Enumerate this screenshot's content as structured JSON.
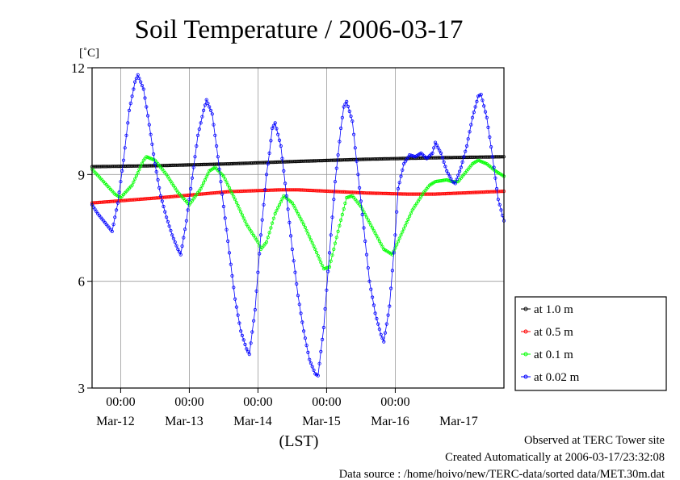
{
  "chart_data": {
    "type": "line",
    "title": "Soil Temperature / 2006-03-17",
    "ylabel": "[˚C]",
    "xlabel": "(LST)",
    "ylim": [
      3,
      12
    ],
    "yticks": [
      "3",
      "6",
      "9",
      "12"
    ],
    "time_labels": [
      "00:00",
      "00:00",
      "00:00",
      "00:00",
      "00:00"
    ],
    "day_labels": [
      "Mar-12",
      "Mar-13",
      "Mar-14",
      "Mar-15",
      "Mar-16",
      "Mar-17"
    ],
    "grid": true,
    "legend_position": "right",
    "x_unit": "hours from 2006-03-11 14:00 LST",
    "x_range": [
      0,
      144
    ],
    "series": [
      {
        "name": "at 1.0 m",
        "color": "#000000",
        "points": [
          [
            0,
            9.22
          ],
          [
            24,
            9.25
          ],
          [
            48,
            9.3
          ],
          [
            72,
            9.37
          ],
          [
            96,
            9.43
          ],
          [
            120,
            9.47
          ],
          [
            144,
            9.5
          ]
        ]
      },
      {
        "name": "at 0.5 m",
        "color": "#ff0000",
        "points": [
          [
            0,
            8.2
          ],
          [
            24,
            8.35
          ],
          [
            48,
            8.52
          ],
          [
            66,
            8.57
          ],
          [
            72,
            8.57
          ],
          [
            96,
            8.48
          ],
          [
            110,
            8.45
          ],
          [
            120,
            8.45
          ],
          [
            144,
            8.53
          ]
        ]
      },
      {
        "name": "at 0.1 m",
        "color": "#00ff00",
        "points": [
          [
            0,
            9.15
          ],
          [
            4,
            8.8
          ],
          [
            8,
            8.45
          ],
          [
            10,
            8.35
          ],
          [
            14,
            8.7
          ],
          [
            18,
            9.4
          ],
          [
            19,
            9.5
          ],
          [
            22,
            9.4
          ],
          [
            26,
            9.0
          ],
          [
            30,
            8.5
          ],
          [
            34,
            8.15
          ],
          [
            38,
            8.6
          ],
          [
            41,
            9.1
          ],
          [
            43,
            9.2
          ],
          [
            46,
            8.95
          ],
          [
            50,
            8.3
          ],
          [
            54,
            7.6
          ],
          [
            58,
            7.1
          ],
          [
            59,
            6.9
          ],
          [
            61,
            7.1
          ],
          [
            64,
            7.9
          ],
          [
            67,
            8.4
          ],
          [
            70,
            8.2
          ],
          [
            74,
            7.6
          ],
          [
            78,
            6.9
          ],
          [
            81,
            6.35
          ],
          [
            83,
            6.4
          ],
          [
            86,
            7.4
          ],
          [
            89,
            8.35
          ],
          [
            91,
            8.4
          ],
          [
            94,
            8.1
          ],
          [
            98,
            7.5
          ],
          [
            102,
            6.9
          ],
          [
            105,
            6.75
          ],
          [
            108,
            7.3
          ],
          [
            112,
            8.0
          ],
          [
            116,
            8.5
          ],
          [
            118,
            8.7
          ],
          [
            120,
            8.8
          ],
          [
            124,
            8.85
          ],
          [
            126,
            8.8
          ],
          [
            128,
            8.8
          ],
          [
            130,
            9.0
          ],
          [
            133,
            9.3
          ],
          [
            135,
            9.4
          ],
          [
            138,
            9.3
          ],
          [
            141,
            9.1
          ],
          [
            144,
            8.95
          ]
        ]
      },
      {
        "name": "at 0.02 m",
        "color": "#0000ff",
        "points": [
          [
            0,
            8.15
          ],
          [
            2,
            7.9
          ],
          [
            4,
            7.7
          ],
          [
            6,
            7.5
          ],
          [
            7,
            7.4
          ],
          [
            9,
            8.2
          ],
          [
            11,
            9.4
          ],
          [
            13,
            10.8
          ],
          [
            15,
            11.6
          ],
          [
            16,
            11.8
          ],
          [
            18,
            11.4
          ],
          [
            20,
            10.4
          ],
          [
            22,
            9.3
          ],
          [
            24,
            8.4
          ],
          [
            26,
            7.8
          ],
          [
            28,
            7.3
          ],
          [
            30,
            6.9
          ],
          [
            31,
            6.75
          ],
          [
            33,
            7.7
          ],
          [
            35,
            8.9
          ],
          [
            37,
            10.1
          ],
          [
            39,
            10.8
          ],
          [
            40,
            11.1
          ],
          [
            42,
            10.7
          ],
          [
            44,
            9.5
          ],
          [
            46,
            8.1
          ],
          [
            48,
            6.8
          ],
          [
            50,
            5.5
          ],
          [
            52,
            4.6
          ],
          [
            54,
            4.1
          ],
          [
            55,
            3.95
          ],
          [
            57,
            5.2
          ],
          [
            59,
            7.3
          ],
          [
            61,
            9.0
          ],
          [
            62,
            9.6
          ],
          [
            63,
            10.3
          ],
          [
            64,
            10.45
          ],
          [
            66,
            9.8
          ],
          [
            68,
            8.4
          ],
          [
            70,
            6.9
          ],
          [
            72,
            5.6
          ],
          [
            74,
            4.6
          ],
          [
            76,
            3.8
          ],
          [
            78,
            3.4
          ],
          [
            79,
            3.35
          ],
          [
            81,
            4.7
          ],
          [
            83,
            6.8
          ],
          [
            85,
            8.8
          ],
          [
            87,
            10.3
          ],
          [
            88,
            10.9
          ],
          [
            89,
            11.05
          ],
          [
            91,
            10.5
          ],
          [
            93,
            9.0
          ],
          [
            95,
            7.5
          ],
          [
            97,
            6.0
          ],
          [
            99,
            5.1
          ],
          [
            101,
            4.5
          ],
          [
            102,
            4.3
          ],
          [
            104,
            5.3
          ],
          [
            106,
            7.3
          ],
          [
            107,
            8.6
          ],
          [
            109,
            9.3
          ],
          [
            111,
            9.55
          ],
          [
            113,
            9.5
          ],
          [
            115,
            9.6
          ],
          [
            117,
            9.45
          ],
          [
            119,
            9.6
          ],
          [
            120,
            9.9
          ],
          [
            122,
            9.6
          ],
          [
            124,
            9.1
          ],
          [
            126,
            8.8
          ],
          [
            127,
            8.75
          ],
          [
            129,
            9.2
          ],
          [
            131,
            9.8
          ],
          [
            133,
            10.6
          ],
          [
            135,
            11.2
          ],
          [
            136,
            11.25
          ],
          [
            138,
            10.6
          ],
          [
            140,
            9.5
          ],
          [
            142,
            8.3
          ],
          [
            144,
            7.7
          ]
        ]
      }
    ]
  },
  "footer": {
    "line1": "Observed at TERC Tower site",
    "line2": "Created Automatically at 2006-03-17/23:32:08",
    "line3": "Data source : /home/hoivo/new/TERC-data/sorted  data/MET.30m.dat"
  }
}
